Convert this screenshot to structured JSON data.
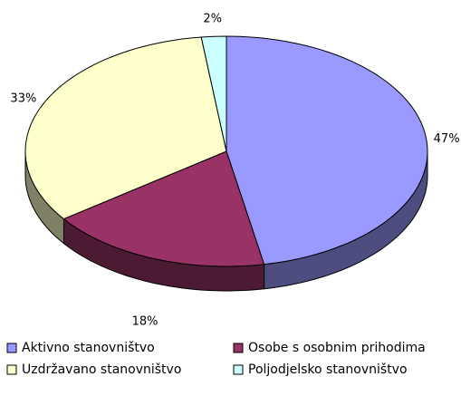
{
  "chart_data": {
    "type": "pie",
    "categories": [
      "Aktivno stanovništvo",
      "Osobe s osobnim prihodima",
      "Uzdržavano stanovništvo",
      "Poljodjelsko stanovništvo"
    ],
    "values": [
      47,
      18,
      33,
      2
    ],
    "value_labels": [
      "47%",
      "18%",
      "33%",
      "2%"
    ],
    "colors": [
      "#9999ff",
      "#993366",
      "#ffffcc",
      "#ccffff"
    ],
    "legend": "bottom"
  }
}
